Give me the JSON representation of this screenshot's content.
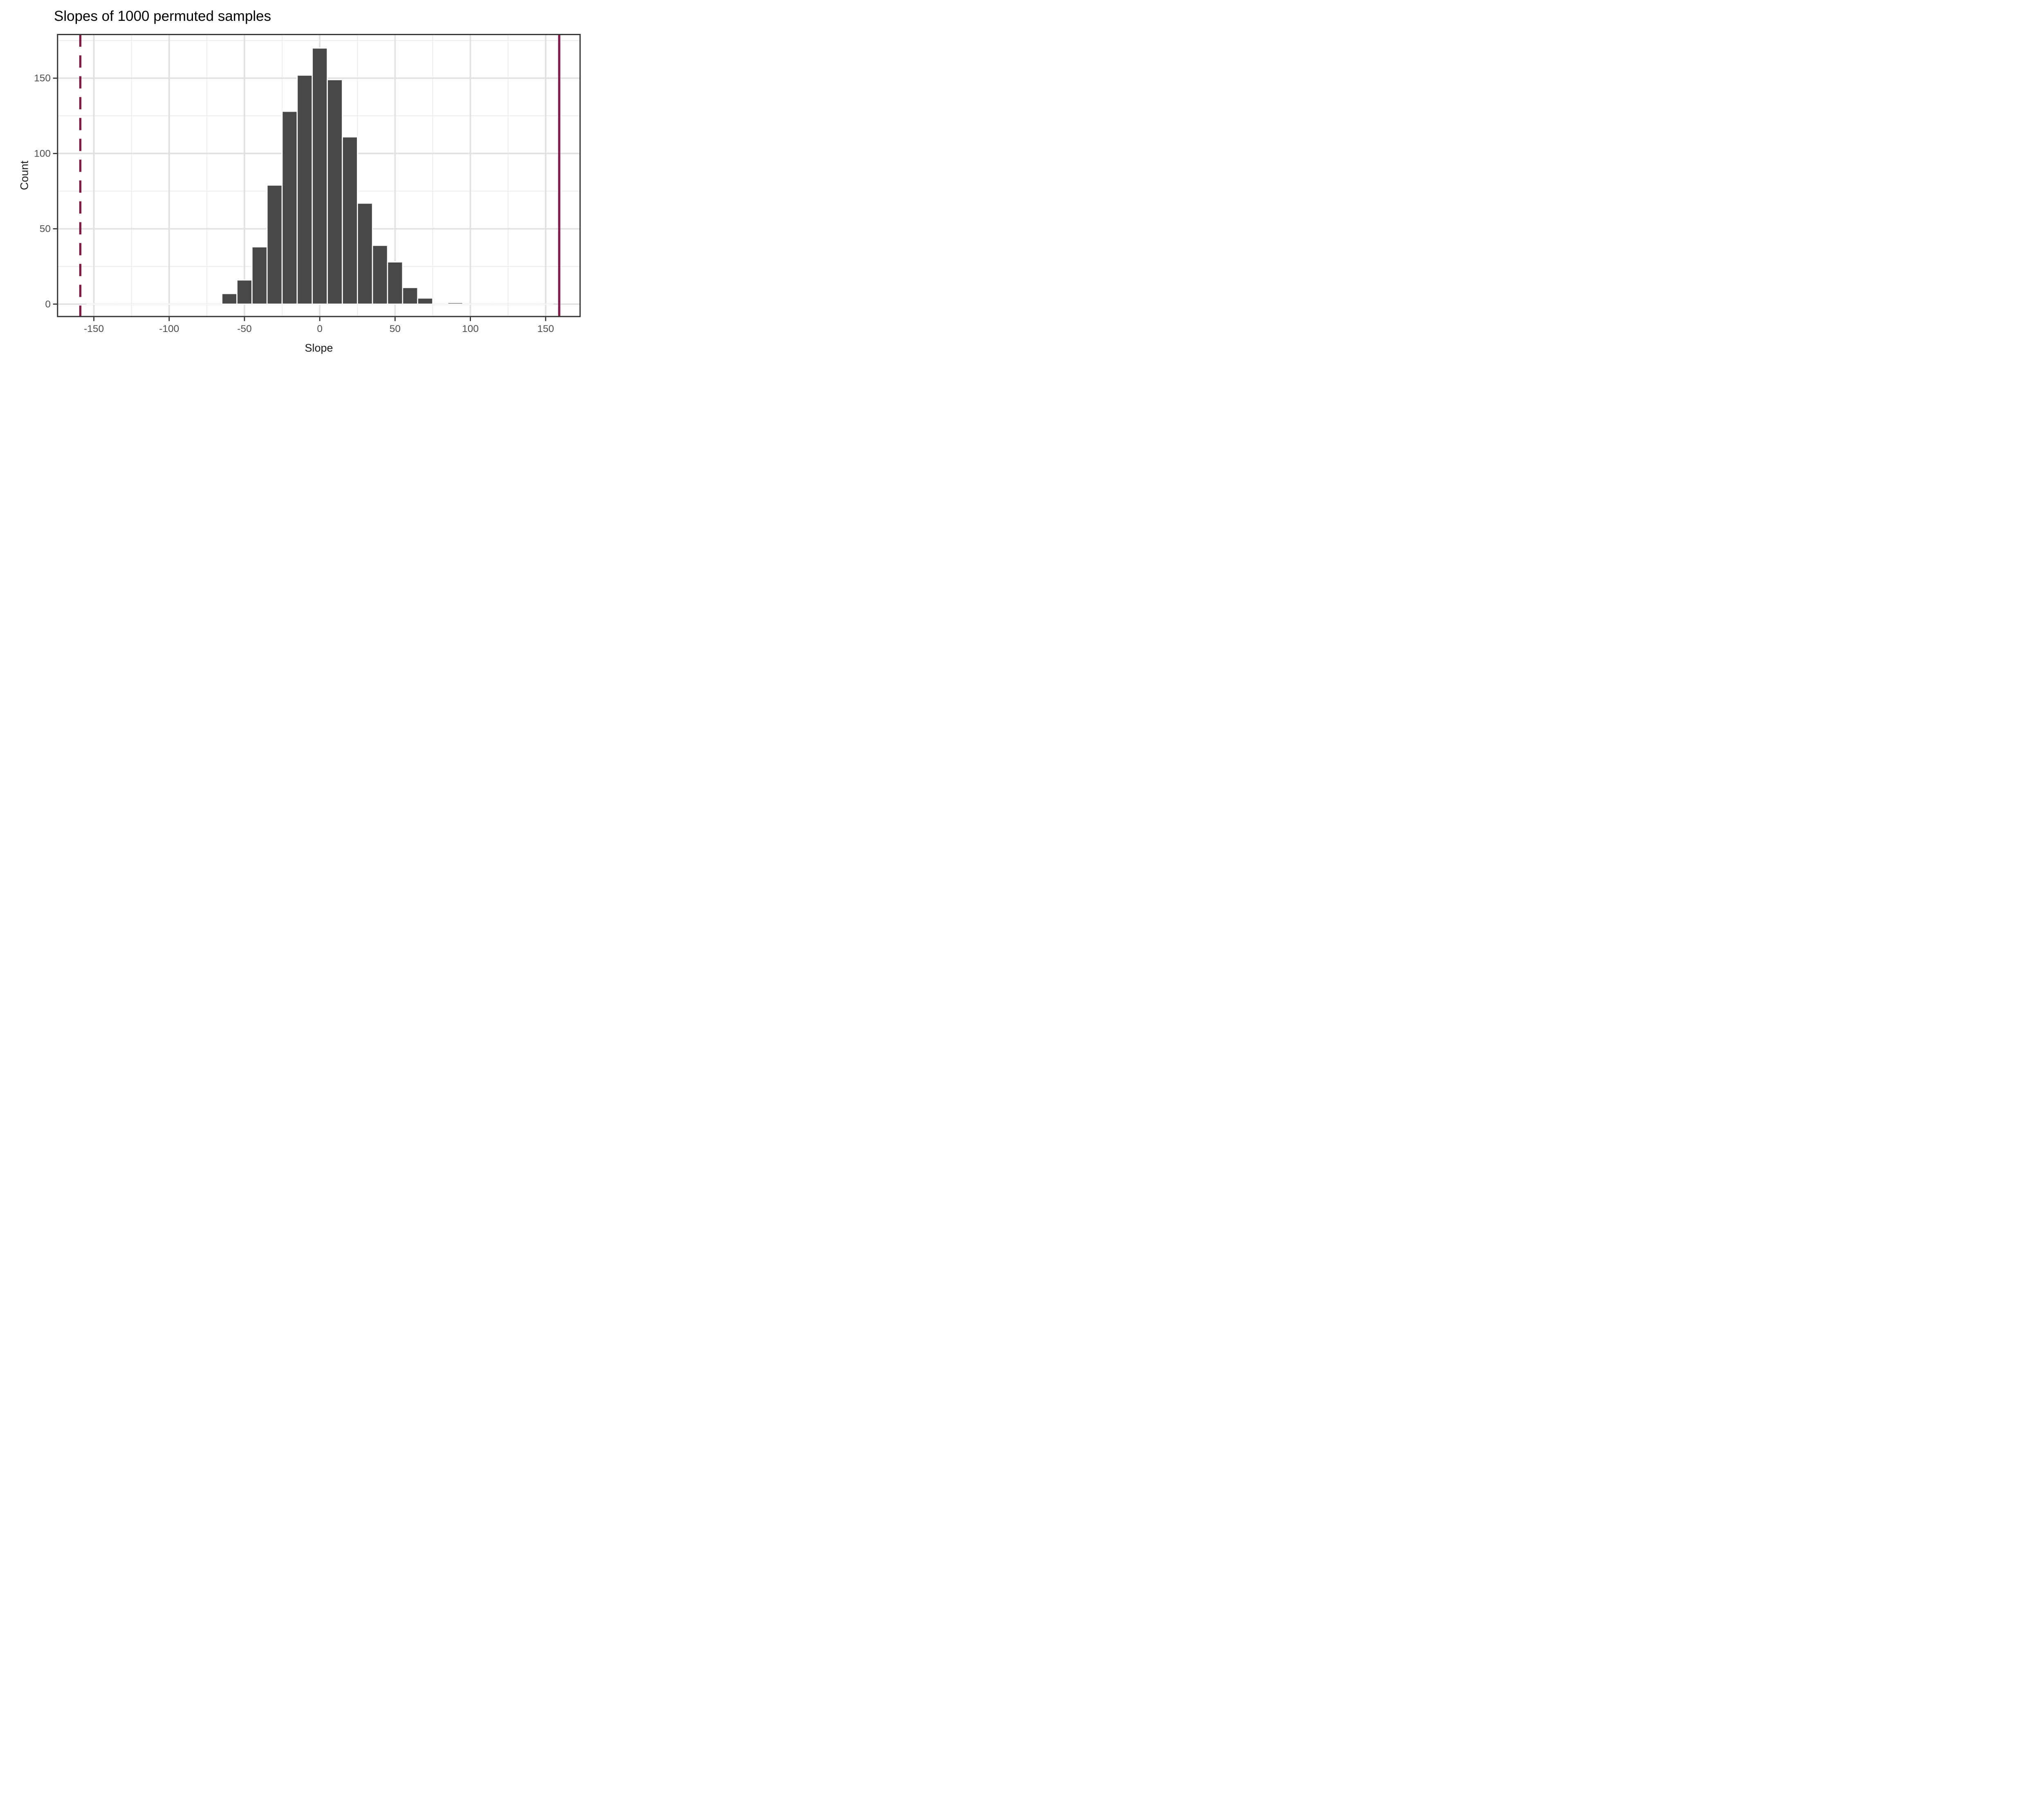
{
  "chart_data": {
    "type": "bar",
    "subtype": "histogram",
    "title": "Slopes of 1000 permuted samples",
    "xlabel": "Slope",
    "ylabel": "Count",
    "n_samples": 1000,
    "bin_width": 10,
    "bin_centers": [
      -150,
      -140,
      -130,
      -120,
      -110,
      -100,
      -90,
      -80,
      -70,
      -60,
      -50,
      -40,
      -30,
      -20,
      -10,
      0,
      10,
      20,
      30,
      40,
      50,
      60,
      70,
      80,
      90,
      100,
      110,
      120,
      130,
      140,
      150
    ],
    "counts": [
      0,
      0,
      0,
      0,
      0,
      0,
      0,
      0,
      0,
      7,
      16,
      38,
      79,
      128,
      152,
      170,
      149,
      111,
      67,
      39,
      28,
      11,
      4,
      0,
      1,
      0,
      0,
      0,
      0,
      0,
      0
    ],
    "x_ticks": [
      -150,
      -100,
      -50,
      0,
      50,
      100,
      150
    ],
    "y_ticks": [
      0,
      50,
      100,
      150
    ],
    "x_minor_ticks": [
      -125,
      -75,
      -25,
      25,
      75,
      125
    ],
    "y_minor_ticks": [
      25,
      75,
      125,
      175
    ],
    "xlim": [
      -174.1,
      172.8
    ],
    "ylim": [
      -8.25,
      179.0
    ],
    "grid": "on",
    "legend": "none",
    "vlines": [
      {
        "value": -159,
        "style": "dashed",
        "meaning": "observed-slope-negative"
      },
      {
        "value": 159,
        "style": "solid",
        "meaning": "observed-slope-positive"
      }
    ],
    "colors": {
      "bar_fill": "#484848",
      "bar_border": "#ffffff",
      "vline": "#7d1e46",
      "grid_major": "#e2e2e2",
      "grid_minor": "#ebebeb",
      "panel_border": "#333333",
      "tick_mark": "#333333",
      "tick_label": "#4d4d4d",
      "axis_title": "#1a1a1a",
      "title": "#000000",
      "background": "#ffffff"
    }
  }
}
